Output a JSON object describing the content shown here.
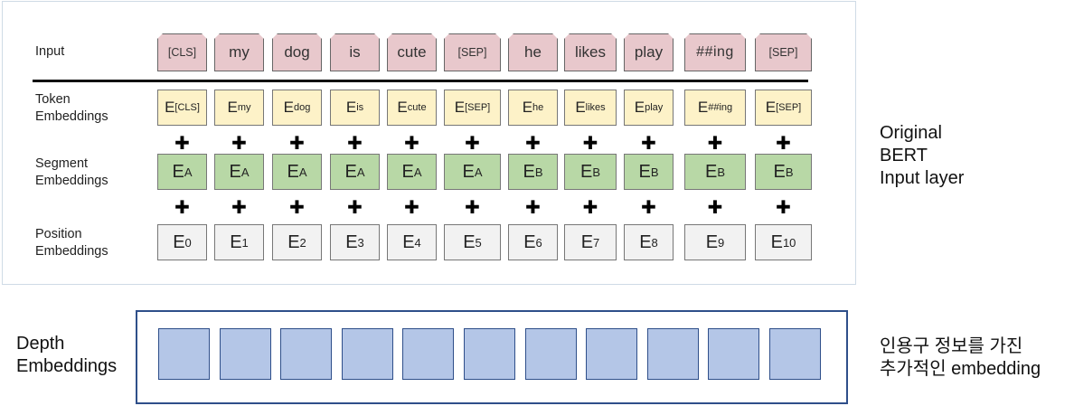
{
  "rows": {
    "input": "Input",
    "token": [
      "Token",
      "Embeddings"
    ],
    "segment": [
      "Segment",
      "Embeddings"
    ],
    "position": [
      "Position",
      "Embeddings"
    ]
  },
  "tokens": [
    "[CLS]",
    "my",
    "dog",
    "is",
    "cute",
    "[SEP]",
    "he",
    "likes",
    "play",
    "##ing",
    "[SEP]"
  ],
  "token_embeddings": [
    "[CLS]",
    "my",
    "dog",
    "is",
    "cute",
    "[SEP]",
    "he",
    "likes",
    "play",
    "##ing",
    "[SEP]"
  ],
  "segment_embeddings": [
    "A",
    "A",
    "A",
    "A",
    "A",
    "A",
    "B",
    "B",
    "B",
    "B",
    "B"
  ],
  "position_embeddings": [
    "0",
    "1",
    "2",
    "3",
    "4",
    "5",
    "6",
    "7",
    "8",
    "9",
    "10"
  ],
  "embedding_letter": "E",
  "plus_symbol": "✚",
  "bert_caption": [
    "Original",
    "BERT",
    "Input layer"
  ],
  "depth": {
    "label": [
      "Depth",
      "Embeddings"
    ],
    "count": 11,
    "caption": [
      "인용구 정보를 가진",
      "추가적인 embedding"
    ]
  },
  "colors": {
    "token": "#e8c8cc",
    "token_embedding": "#fdf2c8",
    "segment_embedding": "#b8d8a6",
    "position_embedding": "#f2f2f2",
    "depth_box": "#b4c6e7",
    "depth_border": "#2f4f8a"
  }
}
